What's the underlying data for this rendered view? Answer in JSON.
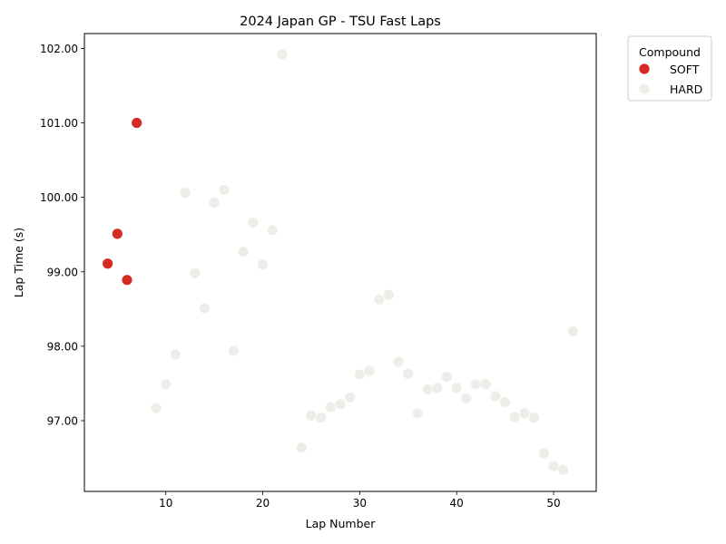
{
  "chart_data": {
    "type": "scatter",
    "title": "2024 Japan GP - TSU Fast Laps",
    "xlabel": "Lap Number",
    "ylabel": "Lap Time (s)",
    "xlim": [
      1.6,
      54.4
    ],
    "ylim": [
      96.05,
      102.2
    ],
    "xticks": [
      10,
      20,
      30,
      40,
      50
    ],
    "yticks": [
      97.0,
      98.0,
      99.0,
      100.0,
      101.0,
      102.0
    ],
    "ytick_labels": [
      "97.00",
      "98.00",
      "99.00",
      "100.00",
      "101.00",
      "102.00"
    ],
    "legend": {
      "title": "Compound",
      "placement": "outside-top-right"
    },
    "series": [
      {
        "name": "SOFT",
        "color": "#d62b22",
        "x": [
          4,
          5,
          6,
          7
        ],
        "y": [
          99.11,
          99.51,
          98.89,
          101.0
        ]
      },
      {
        "name": "HARD",
        "color": "#efede8",
        "x": [
          9,
          10,
          11,
          12,
          13,
          14,
          15,
          16,
          17,
          18,
          19,
          20,
          21,
          22,
          24,
          25,
          26,
          27,
          28,
          29,
          30,
          31,
          32,
          33,
          34,
          35,
          36,
          37,
          38,
          39,
          40,
          41,
          42,
          43,
          44,
          45,
          46,
          47,
          48,
          49,
          50,
          51,
          52
        ],
        "y": [
          97.17,
          97.49,
          97.89,
          100.06,
          98.98,
          98.51,
          99.93,
          100.1,
          97.94,
          99.27,
          99.66,
          99.1,
          99.56,
          101.92,
          96.64,
          97.07,
          97.04,
          97.18,
          97.22,
          97.31,
          97.62,
          97.67,
          98.63,
          98.69,
          97.79,
          97.63,
          97.1,
          97.42,
          97.44,
          97.59,
          97.44,
          97.3,
          97.49,
          97.49,
          97.33,
          97.25,
          97.05,
          97.1,
          97.04,
          96.56,
          96.39,
          96.34,
          98.2
        ]
      }
    ]
  }
}
